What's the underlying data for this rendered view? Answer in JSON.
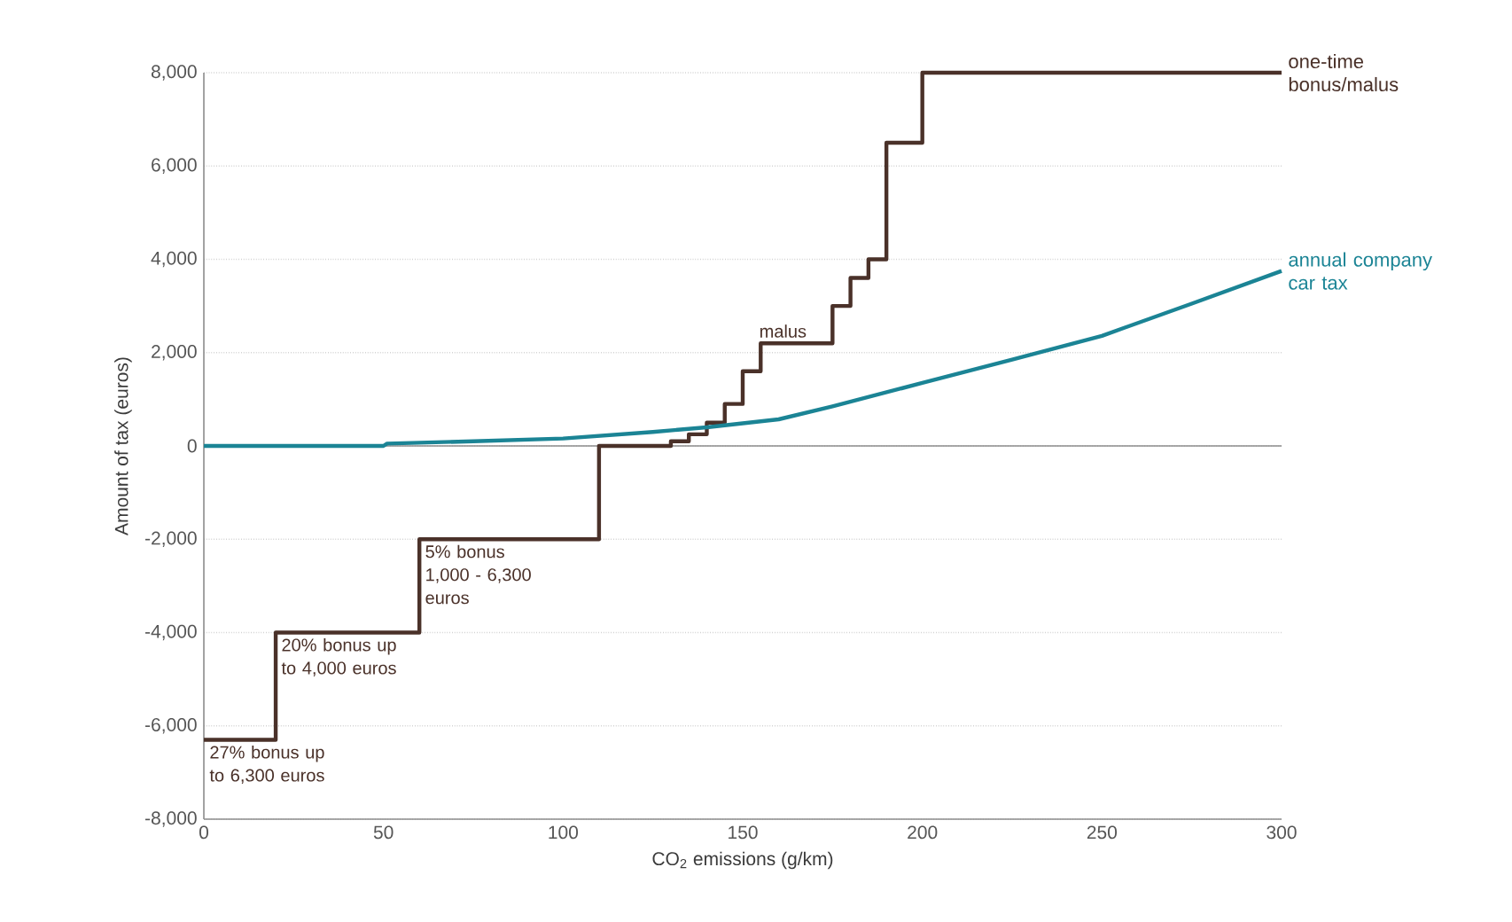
{
  "chart_data": {
    "type": "line",
    "xlabel": "CO$_{2}$ emissions (g/km)",
    "ylabel": "Amount of tax (euros)",
    "series": [
      {
        "name": "one-time bonus/malus",
        "type": "step",
        "color": "#4a3129",
        "x": [
          0,
          20,
          60,
          110,
          130,
          135,
          140,
          145,
          150,
          155,
          175,
          180,
          185,
          190,
          200,
          300
        ],
        "values": [
          -6300,
          -4000,
          -2000,
          0,
          100,
          250,
          500,
          900,
          1600,
          2200,
          3000,
          3600,
          4000,
          6500,
          8000,
          8000
        ]
      },
      {
        "name": "annual company car tax",
        "color": "#1b8495",
        "x": [
          0,
          50,
          51,
          75,
          100,
          125,
          140,
          160,
          175,
          200,
          225,
          250,
          275,
          300
        ],
        "values": [
          0,
          0,
          50,
          100,
          160,
          300,
          400,
          570,
          850,
          1350,
          1850,
          2360,
          3050,
          3750
        ]
      }
    ],
    "xlim": [
      0,
      300
    ],
    "xticks": [
      0,
      50,
      100,
      150,
      200,
      250,
      300
    ],
    "ylim": [
      -8000,
      8000
    ],
    "yticks": [
      {
        "value": -8000,
        "label": "-8,000"
      },
      {
        "value": -6000,
        "label": "-6,000"
      },
      {
        "value": -4000,
        "label": "-4,000"
      },
      {
        "value": -2000,
        "label": "-2,000"
      },
      0,
      {
        "value": 2000,
        "label": "2,000"
      },
      {
        "value": 4000,
        "label": "4,000"
      },
      {
        "value": 6000,
        "label": "6,000"
      },
      {
        "value": 8000,
        "label": "8,000"
      }
    ],
    "ref_lines": [
      {
        "axis": "y",
        "value": 0,
        "color": "#8c8c8c"
      }
    ],
    "grid": "y",
    "annotations": [
      {
        "text": "27% bonus up to 6,300 euros",
        "x": 0,
        "y": -6300
      },
      {
        "text": "20% bonus up to 4,000 euros",
        "x": 20,
        "y": -4000
      },
      {
        "text": "5% bonus 1,000 - 6,300 euros",
        "x": 60,
        "y": -2000
      },
      {
        "text": "malus",
        "x": 155,
        "y": 2200
      }
    ]
  }
}
